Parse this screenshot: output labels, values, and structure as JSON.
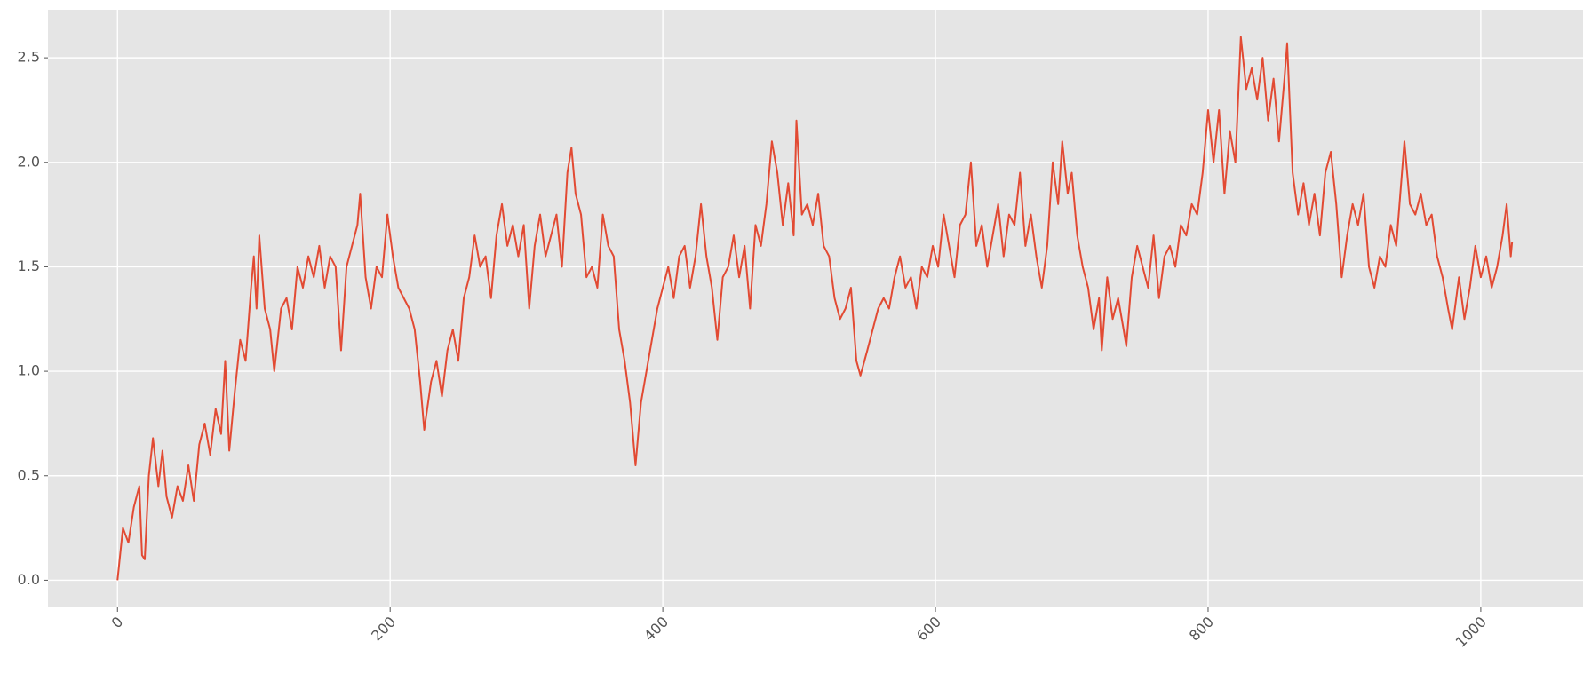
{
  "chart_data": {
    "type": "line",
    "color": "#e24a33",
    "grid": true,
    "x": [
      0,
      4,
      8,
      12,
      16,
      18,
      20,
      23,
      26,
      30,
      33,
      36,
      40,
      44,
      48,
      52,
      56,
      60,
      64,
      68,
      72,
      76,
      79,
      82,
      86,
      90,
      94,
      98,
      100,
      102,
      104,
      108,
      112,
      115,
      120,
      124,
      128,
      132,
      136,
      140,
      144,
      148,
      152,
      156,
      160,
      164,
      168,
      172,
      176,
      178,
      182,
      186,
      190,
      194,
      198,
      202,
      206,
      210,
      214,
      218,
      222,
      225,
      230,
      234,
      238,
      242,
      246,
      250,
      254,
      258,
      262,
      266,
      270,
      274,
      278,
      282,
      286,
      290,
      294,
      298,
      302,
      306,
      310,
      314,
      318,
      322,
      326,
      330,
      333,
      336,
      340,
      344,
      348,
      352,
      356,
      360,
      364,
      368,
      372,
      376,
      380,
      384,
      388,
      392,
      396,
      400,
      404,
      408,
      412,
      416,
      420,
      424,
      428,
      432,
      436,
      440,
      444,
      448,
      452,
      456,
      460,
      464,
      468,
      472,
      476,
      480,
      484,
      488,
      492,
      496,
      498,
      502,
      506,
      510,
      514,
      518,
      522,
      526,
      530,
      534,
      538,
      542,
      545,
      550,
      554,
      558,
      562,
      566,
      570,
      574,
      578,
      582,
      586,
      590,
      594,
      598,
      602,
      606,
      610,
      614,
      618,
      622,
      626,
      630,
      634,
      638,
      642,
      646,
      650,
      654,
      658,
      662,
      666,
      670,
      674,
      678,
      682,
      686,
      690,
      693,
      697,
      700,
      704,
      708,
      712,
      716,
      720,
      722,
      726,
      730,
      734,
      738,
      740,
      744,
      748,
      752,
      756,
      760,
      764,
      768,
      772,
      776,
      780,
      784,
      788,
      792,
      796,
      800,
      804,
      808,
      812,
      816,
      820,
      824,
      828,
      832,
      836,
      840,
      844,
      848,
      852,
      856,
      858,
      862,
      866,
      870,
      874,
      878,
      882,
      886,
      890,
      894,
      898,
      902,
      906,
      910,
      914,
      918,
      922,
      926,
      930,
      934,
      938,
      944,
      948,
      952,
      956,
      960,
      964,
      968,
      972,
      976,
      979,
      984,
      988,
      992,
      996,
      1000,
      1004,
      1008,
      1012,
      1016,
      1019,
      1022,
      1023
    ],
    "values": [
      0,
      0.25,
      0.18,
      0.35,
      0.45,
      0.12,
      0.1,
      0.5,
      0.68,
      0.45,
      0.62,
      0.4,
      0.3,
      0.45,
      0.38,
      0.55,
      0.38,
      0.65,
      0.75,
      0.6,
      0.82,
      0.7,
      1.05,
      0.62,
      0.9,
      1.15,
      1.05,
      1.4,
      1.55,
      1.3,
      1.65,
      1.3,
      1.2,
      1.0,
      1.3,
      1.35,
      1.2,
      1.5,
      1.4,
      1.55,
      1.45,
      1.6,
      1.4,
      1.55,
      1.5,
      1.1,
      1.5,
      1.6,
      1.7,
      1.85,
      1.45,
      1.3,
      1.5,
      1.45,
      1.75,
      1.55,
      1.4,
      1.35,
      1.3,
      1.2,
      0.95,
      0.72,
      0.95,
      1.05,
      0.88,
      1.1,
      1.2,
      1.05,
      1.35,
      1.45,
      1.65,
      1.5,
      1.55,
      1.35,
      1.65,
      1.8,
      1.6,
      1.7,
      1.55,
      1.7,
      1.3,
      1.6,
      1.75,
      1.55,
      1.65,
      1.75,
      1.5,
      1.95,
      2.07,
      1.85,
      1.75,
      1.45,
      1.5,
      1.4,
      1.75,
      1.6,
      1.55,
      1.2,
      1.05,
      0.85,
      0.55,
      0.85,
      1.0,
      1.15,
      1.3,
      1.4,
      1.5,
      1.35,
      1.55,
      1.6,
      1.4,
      1.55,
      1.8,
      1.55,
      1.4,
      1.15,
      1.45,
      1.5,
      1.65,
      1.45,
      1.6,
      1.3,
      1.7,
      1.6,
      1.8,
      2.1,
      1.95,
      1.7,
      1.9,
      1.65,
      2.2,
      1.75,
      1.8,
      1.7,
      1.85,
      1.6,
      1.55,
      1.35,
      1.25,
      1.3,
      1.4,
      1.05,
      0.98,
      1.1,
      1.2,
      1.3,
      1.35,
      1.3,
      1.45,
      1.55,
      1.4,
      1.45,
      1.3,
      1.5,
      1.45,
      1.6,
      1.5,
      1.75,
      1.6,
      1.45,
      1.7,
      1.75,
      2.0,
      1.6,
      1.7,
      1.5,
      1.65,
      1.8,
      1.55,
      1.75,
      1.7,
      1.95,
      1.6,
      1.75,
      1.55,
      1.4,
      1.6,
      2.0,
      1.8,
      2.1,
      1.85,
      1.95,
      1.65,
      1.5,
      1.4,
      1.2,
      1.35,
      1.1,
      1.45,
      1.25,
      1.35,
      1.2,
      1.12,
      1.45,
      1.6,
      1.5,
      1.4,
      1.65,
      1.35,
      1.55,
      1.6,
      1.5,
      1.7,
      1.65,
      1.8,
      1.75,
      1.95,
      2.25,
      2.0,
      2.25,
      1.85,
      2.15,
      2.0,
      2.6,
      2.35,
      2.45,
      2.3,
      2.5,
      2.2,
      2.4,
      2.1,
      2.4,
      2.57,
      1.95,
      1.75,
      1.9,
      1.7,
      1.85,
      1.65,
      1.95,
      2.05,
      1.8,
      1.45,
      1.65,
      1.8,
      1.7,
      1.85,
      1.5,
      1.4,
      1.55,
      1.5,
      1.7,
      1.6,
      2.1,
      1.8,
      1.75,
      1.85,
      1.7,
      1.75,
      1.55,
      1.45,
      1.3,
      1.2,
      1.45,
      1.25,
      1.4,
      1.6,
      1.45,
      1.55,
      1.4,
      1.5,
      1.65,
      1.8,
      1.55,
      1.62
    ],
    "xlim": [
      -51,
      1075
    ],
    "ylim": [
      -0.13,
      2.73
    ],
    "xticks": [
      0,
      200,
      400,
      600,
      800,
      1000
    ],
    "yticks": [
      {
        "value": 0,
        "label": "0.0"
      },
      0.5,
      {
        "value": 1,
        "label": "1.0"
      },
      1.5,
      {
        "value": 2,
        "label": "2.0"
      },
      2.5
    ]
  }
}
